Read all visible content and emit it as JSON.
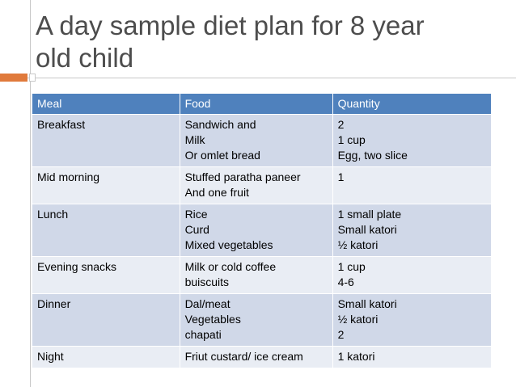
{
  "slide": {
    "title_line1": "A day sample diet plan for 8 year",
    "title_line2": "old child",
    "accent_color": "#e07a3c",
    "header_color": "#4f81bd"
  },
  "table": {
    "headers": {
      "meal": "Meal",
      "food": "Food",
      "quantity": "Quantity"
    },
    "rows": [
      {
        "meal": "Breakfast",
        "food": [
          "Sandwich and",
          "Milk",
          "Or omlet bread"
        ],
        "quantity": [
          "2",
          "1 cup",
          "Egg, two slice"
        ]
      },
      {
        "meal": "Mid morning",
        "food": [
          "Stuffed paratha paneer",
          "And one fruit"
        ],
        "quantity": [
          "1"
        ]
      },
      {
        "meal": "Lunch",
        "food": [
          "Rice",
          "Curd",
          "Mixed vegetables"
        ],
        "quantity": [
          "1 small plate",
          "Small katori",
          "½ katori"
        ]
      },
      {
        "meal": "Evening snacks",
        "food": [
          "Milk or cold coffee",
          "buiscuits"
        ],
        "quantity": [
          "1 cup",
          "4-6"
        ]
      },
      {
        "meal": "Dinner",
        "food": [
          "Dal/meat",
          "Vegetables",
          "chapati"
        ],
        "quantity": [
          "Small katori",
          "½ katori",
          "2"
        ]
      },
      {
        "meal": "Night",
        "food": [
          "Friut custard/ ice cream"
        ],
        "quantity": [
          "1 katori"
        ]
      }
    ]
  }
}
